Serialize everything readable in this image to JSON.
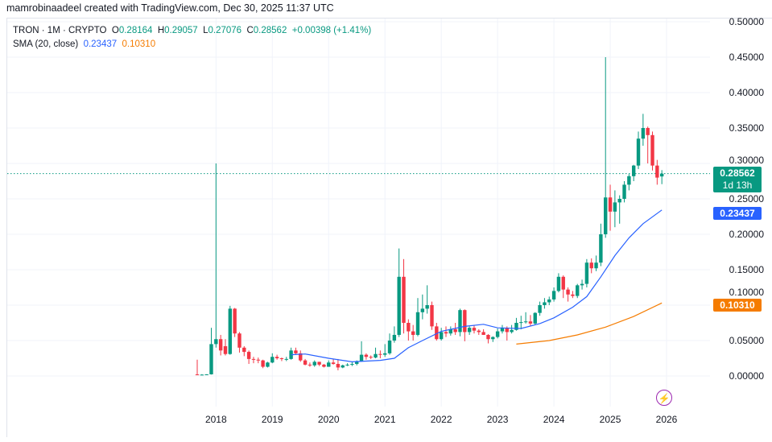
{
  "header": {
    "credit": "mamrobinaadeel created with TradingView.com, Dec 30, 2025 11:37 UTC"
  },
  "legend": {
    "symbol": "TRON · 1M · CRYPTO",
    "o_label": "O",
    "o": "0.28164",
    "h_label": "H",
    "h": "0.29057",
    "l_label": "L",
    "l": "0.27076",
    "c_label": "C",
    "c": "0.28562",
    "change": "+0.00398 (+1.41%)",
    "sma_label": "SMA (20, close)",
    "sma1": "0.23437",
    "sma2": "0.10310"
  },
  "price_tag": {
    "price": "0.28562",
    "countdown": "1d 13h"
  },
  "sma_tags": {
    "sma1": "0.23437",
    "sma2": "0.10310"
  },
  "colors": {
    "up": "#089981",
    "down": "#f23645",
    "sma1": "#2962ff",
    "sma2": "#f57c00",
    "grid": "#f0f3fa"
  },
  "icons": {
    "bolt": "lightning-icon"
  },
  "chart_data": {
    "type": "candlestick",
    "interval": "1M",
    "start": "2017-09",
    "yticks": [
      "0.00000",
      "0.05000",
      "0.10000",
      "0.15000",
      "0.20000",
      "0.25000",
      "0.30000",
      "0.35000",
      "0.40000",
      "0.45000",
      "0.50000"
    ],
    "xticks": [
      "2018",
      "2019",
      "2020",
      "2021",
      "2022",
      "2023",
      "2024",
      "2025",
      "2026"
    ],
    "ylim": [
      -0.043,
      0.512
    ],
    "grid": true,
    "ohlc": [
      [
        0.0022,
        0.023,
        0.0015,
        0.0016
      ],
      [
        0.0016,
        0.0025,
        0.0015,
        0.0019
      ],
      [
        0.0019,
        0.0025,
        0.0017,
        0.0023
      ],
      [
        0.0023,
        0.068,
        0.002,
        0.045
      ],
      [
        0.045,
        0.3,
        0.04,
        0.052
      ],
      [
        0.052,
        0.058,
        0.029,
        0.036
      ],
      [
        0.042,
        0.052,
        0.029,
        0.031
      ],
      [
        0.031,
        0.099,
        0.03,
        0.095
      ],
      [
        0.095,
        0.096,
        0.055,
        0.06
      ],
      [
        0.06,
        0.062,
        0.033,
        0.04
      ],
      [
        0.04,
        0.042,
        0.028,
        0.034
      ],
      [
        0.034,
        0.036,
        0.017,
        0.024
      ],
      [
        0.024,
        0.027,
        0.018,
        0.023
      ],
      [
        0.023,
        0.026,
        0.018,
        0.022
      ],
      [
        0.022,
        0.023,
        0.011,
        0.013
      ],
      [
        0.013,
        0.02,
        0.012,
        0.019
      ],
      [
        0.019,
        0.032,
        0.018,
        0.027
      ],
      [
        0.027,
        0.03,
        0.023,
        0.025
      ],
      [
        0.025,
        0.026,
        0.021,
        0.024
      ],
      [
        0.024,
        0.027,
        0.021,
        0.024
      ],
      [
        0.024,
        0.04,
        0.023,
        0.036
      ],
      [
        0.036,
        0.04,
        0.03,
        0.032
      ],
      [
        0.032,
        0.036,
        0.02,
        0.022
      ],
      [
        0.022,
        0.024,
        0.015,
        0.016
      ],
      [
        0.016,
        0.019,
        0.013,
        0.015
      ],
      [
        0.015,
        0.022,
        0.013,
        0.02
      ],
      [
        0.02,
        0.02,
        0.014,
        0.016
      ],
      [
        0.016,
        0.017,
        0.012,
        0.013
      ],
      [
        0.013,
        0.022,
        0.013,
        0.019
      ],
      [
        0.019,
        0.024,
        0.016,
        0.017
      ],
      [
        0.017,
        0.024,
        0.008,
        0.012
      ],
      [
        0.012,
        0.016,
        0.011,
        0.015
      ],
      [
        0.015,
        0.018,
        0.014,
        0.016
      ],
      [
        0.016,
        0.02,
        0.014,
        0.017
      ],
      [
        0.017,
        0.022,
        0.015,
        0.021
      ],
      [
        0.021,
        0.049,
        0.02,
        0.03
      ],
      [
        0.03,
        0.032,
        0.023,
        0.027
      ],
      [
        0.027,
        0.029,
        0.024,
        0.026
      ],
      [
        0.026,
        0.04,
        0.025,
        0.031
      ],
      [
        0.031,
        0.036,
        0.025,
        0.03
      ],
      [
        0.03,
        0.045,
        0.027,
        0.032
      ],
      [
        0.032,
        0.06,
        0.03,
        0.05
      ],
      [
        0.05,
        0.07,
        0.047,
        0.058
      ],
      [
        0.058,
        0.18,
        0.055,
        0.14
      ],
      [
        0.14,
        0.165,
        0.06,
        0.075
      ],
      [
        0.075,
        0.08,
        0.05,
        0.063
      ],
      [
        0.063,
        0.072,
        0.05,
        0.058
      ],
      [
        0.058,
        0.11,
        0.056,
        0.09
      ],
      [
        0.09,
        0.115,
        0.08,
        0.095
      ],
      [
        0.095,
        0.128,
        0.088,
        0.1
      ],
      [
        0.1,
        0.105,
        0.065,
        0.07
      ],
      [
        0.07,
        0.075,
        0.05,
        0.052
      ],
      [
        0.052,
        0.068,
        0.05,
        0.062
      ],
      [
        0.062,
        0.07,
        0.055,
        0.06
      ],
      [
        0.06,
        0.07,
        0.057,
        0.066
      ],
      [
        0.066,
        0.075,
        0.058,
        0.062
      ],
      [
        0.062,
        0.095,
        0.056,
        0.093
      ],
      [
        0.093,
        0.094,
        0.049,
        0.062
      ],
      [
        0.062,
        0.07,
        0.058,
        0.068
      ],
      [
        0.068,
        0.072,
        0.06,
        0.064
      ],
      [
        0.064,
        0.066,
        0.058,
        0.062
      ],
      [
        0.062,
        0.066,
        0.058,
        0.058
      ],
      [
        0.058,
        0.059,
        0.046,
        0.052
      ],
      [
        0.052,
        0.056,
        0.048,
        0.055
      ],
      [
        0.055,
        0.067,
        0.053,
        0.063
      ],
      [
        0.063,
        0.072,
        0.06,
        0.068
      ],
      [
        0.068,
        0.07,
        0.05,
        0.062
      ],
      [
        0.062,
        0.072,
        0.06,
        0.065
      ],
      [
        0.065,
        0.082,
        0.064,
        0.075
      ],
      [
        0.075,
        0.085,
        0.066,
        0.076
      ],
      [
        0.076,
        0.09,
        0.074,
        0.077
      ],
      [
        0.077,
        0.086,
        0.07,
        0.074
      ],
      [
        0.074,
        0.09,
        0.072,
        0.089
      ],
      [
        0.089,
        0.105,
        0.085,
        0.1
      ],
      [
        0.1,
        0.11,
        0.095,
        0.104
      ],
      [
        0.104,
        0.112,
        0.1,
        0.108
      ],
      [
        0.108,
        0.125,
        0.105,
        0.12
      ],
      [
        0.12,
        0.145,
        0.118,
        0.14
      ],
      [
        0.14,
        0.142,
        0.11,
        0.122
      ],
      [
        0.122,
        0.125,
        0.105,
        0.115
      ],
      [
        0.115,
        0.12,
        0.11,
        0.113
      ],
      [
        0.113,
        0.13,
        0.11,
        0.128
      ],
      [
        0.128,
        0.136,
        0.122,
        0.13
      ],
      [
        0.13,
        0.165,
        0.125,
        0.16
      ],
      [
        0.16,
        0.166,
        0.145,
        0.152
      ],
      [
        0.152,
        0.17,
        0.148,
        0.16
      ],
      [
        0.16,
        0.215,
        0.155,
        0.2
      ],
      [
        0.2,
        0.45,
        0.195,
        0.252
      ],
      [
        0.252,
        0.27,
        0.205,
        0.232
      ],
      [
        0.232,
        0.262,
        0.21,
        0.245
      ],
      [
        0.245,
        0.255,
        0.215,
        0.25
      ],
      [
        0.25,
        0.275,
        0.245,
        0.27
      ],
      [
        0.27,
        0.285,
        0.262,
        0.282
      ],
      [
        0.282,
        0.298,
        0.275,
        0.297
      ],
      [
        0.297,
        0.345,
        0.292,
        0.335
      ],
      [
        0.335,
        0.37,
        0.325,
        0.35
      ],
      [
        0.35,
        0.352,
        0.3,
        0.34
      ],
      [
        0.34,
        0.345,
        0.29,
        0.297
      ],
      [
        0.297,
        0.305,
        0.27,
        0.28
      ],
      [
        0.28164,
        0.29057,
        0.27076,
        0.28562
      ]
    ],
    "series": [
      {
        "name": "SMA (20, close)",
        "points": [
          [
            "2019-05",
            0.03
          ],
          [
            "2019-08",
            0.031
          ],
          [
            "2020-01",
            0.025
          ],
          [
            "2020-06",
            0.02
          ],
          [
            "2020-12",
            0.022
          ],
          [
            "2021-03",
            0.025
          ],
          [
            "2021-06",
            0.04
          ],
          [
            "2021-09",
            0.05
          ],
          [
            "2022-01",
            0.063
          ],
          [
            "2022-06",
            0.07
          ],
          [
            "2022-10",
            0.073
          ],
          [
            "2023-01",
            0.068
          ],
          [
            "2023-06",
            0.067
          ],
          [
            "2023-10",
            0.074
          ],
          [
            "2024-01",
            0.082
          ],
          [
            "2024-05",
            0.097
          ],
          [
            "2024-08",
            0.112
          ],
          [
            "2024-11",
            0.14
          ],
          [
            "2025-02",
            0.17
          ],
          [
            "2025-05",
            0.195
          ],
          [
            "2025-08",
            0.215
          ],
          [
            "2025-12",
            0.23437
          ]
        ]
      },
      {
        "points": [
          [
            "2023-05",
            0.045
          ],
          [
            "2023-12",
            0.05
          ],
          [
            "2024-06",
            0.058
          ],
          [
            "2024-12",
            0.069
          ],
          [
            "2025-06",
            0.084
          ],
          [
            "2025-12",
            0.1031
          ]
        ]
      }
    ]
  }
}
